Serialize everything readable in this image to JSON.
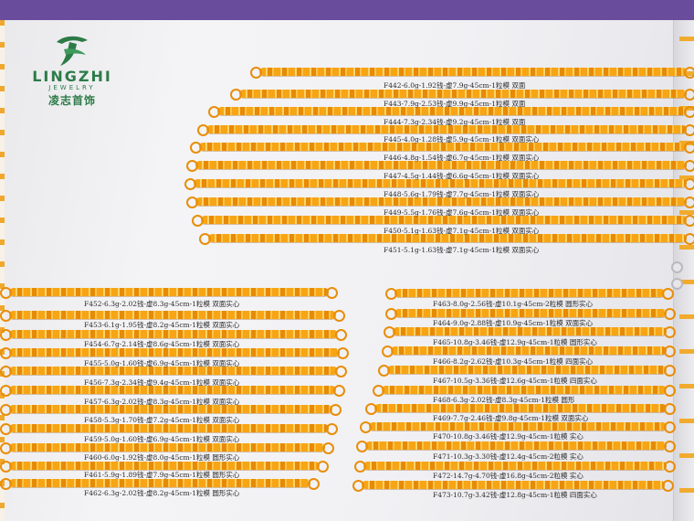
{
  "brand": {
    "name": "LINGZHI",
    "subtitle": "JEWELRY",
    "chinese": "凌志首饰",
    "color": "#2d7b47"
  },
  "top_group": [
    "F442-6.0g-1.92钱-虚7.9g-45cm-1粒模 双面",
    "F443-7.9g-2.53钱-虚9.9g-45cm-1粒模 双面",
    "F444-7.3g-2.34钱-虚9.2g-45cm-1粒模 双面",
    "F445-4.0g-1.28钱-虚5.9g-45cm-1粒模 双面实心",
    "F446-4.8g-1.54钱-虚6.7g-45cm-1粒模 双面实心",
    "F447-4.5g-1.44钱-虚6.6g-45cm-1粒模 双面实心",
    "F448-5.6g-1.79钱-虚7.7g-45cm-1粒模 双面实心",
    "F449-5.5g-1.76钱-虚7.6g-45cm-1粒模 双面实心",
    "F450-5.1g-1.63钱-虚7.1g-45cm-1粒模 双面实心",
    "F451-5.1g-1.63钱-虚7.1g-45cm-1粒模 双面实心"
  ],
  "left_group": [
    "F452-6.3g-2.02钱-虚8.3g-45cm-1粒模 双面实心",
    "F453-6.1g-1.95钱-虚8.2g-45cm-1粒模 双面实心",
    "F454-6.7g-2.14钱-虚8.6g-45cm-1粒模 双面实心",
    "F455-5.0g-1.60钱-虚6.9g-45cm-1粒模 双面实心",
    "F456-7.3g-2.34钱-虚9.4g-45cm-1粒模 双面实心",
    "F457-6.3g-2.02钱-虚8.3g-45cm-1粒模 双面实心",
    "F458-5.3g-1.70钱-虚7.2g-45cm-1粒模 双面实心",
    "F459-5.0g-1.60钱-虚6.9g-45cm-1粒模 双面实心",
    "F460-6.0g-1.92钱-虚8.0g-45cm-1粒模 圆形实心",
    "F461-5.9g-1.89钱-虚7.9g-45cm-1粒模 圆形实心",
    "F462-6.3g-2.02钱-虚8.2g-45cm-1粒模 圆形实心"
  ],
  "right_group": [
    "F463-8.0g-2.56钱-虚10.1g-45cm-2粒模 圆形实心",
    "F464-9.0g-2.88钱-虚10.9g-45cm-1粒模 双面实心",
    "F465-10.8g-3.46钱-虚12.9g-45cm-1粒模 圆形实心",
    "F466-8.2g-2.62钱-虚10.3g-45cm-1粒模 四面实心",
    "F467-10.5g-3.36钱-虚12.6g-45cm-1粒模 四面实心",
    "F468-6.3g-2.02钱-虚8.3g-45cm-1粒模 圆形",
    "F469-7.7g-2.46钱-虚9.8g-45cm-1粒模 双面实心",
    "F470-10.8g-3.46钱-虚12.9g-45cm-1粒模 实心",
    "F471-10.3g-3.30钱-虚12.4g-45cm-2粒模 实心",
    "F472-14.7g-4.70钱-虚16.8g-45cm-2粒模 实心",
    "F473-10.7g-3.42钱-虚12.8g-45cm-1粒模 四面实心"
  ]
}
